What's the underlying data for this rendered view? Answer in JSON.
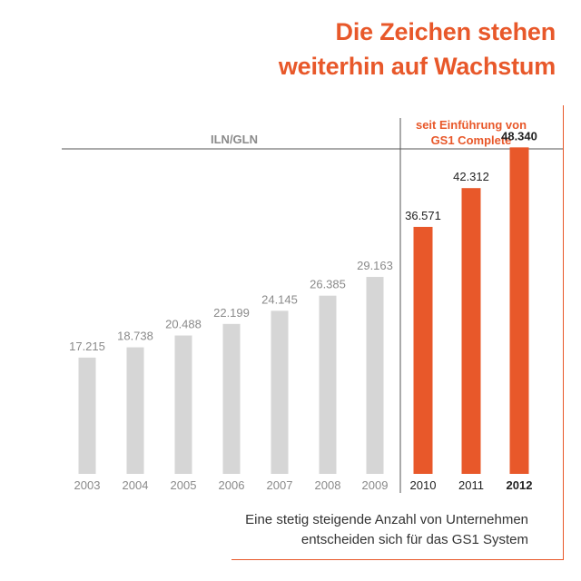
{
  "header": {
    "title_line1": "Die Zeichen stehen",
    "title_line2": "weiterhin auf Wachstum"
  },
  "footnote": {
    "line1": "Eine stetig steigende Anzahl von Unternehmen",
    "line2": "entscheiden sich für das GS1 System"
  },
  "colors": {
    "accent": "#e8582a",
    "bar_gray": "#d6d6d6",
    "label_gray": "#8a8a8a",
    "text_dark": "#222222"
  },
  "chart_data": {
    "type": "bar",
    "title": "",
    "xlabel": "",
    "ylabel": "",
    "ylim": [
      0,
      50000
    ],
    "grid": false,
    "segments": [
      {
        "label": "ILN/GLN",
        "label_lines": [
          "ILN/GLN"
        ],
        "years": [
          "2003",
          "2004",
          "2005",
          "2006",
          "2007",
          "2008",
          "2009"
        ]
      },
      {
        "label": "seit Einführung von GS1 Complete",
        "label_lines": [
          "seit Einführung von",
          "GS1 Complete"
        ],
        "years": [
          "2010",
          "2011",
          "2012"
        ]
      }
    ],
    "categories": [
      "2003",
      "2004",
      "2005",
      "2006",
      "2007",
      "2008",
      "2009",
      "2010",
      "2011",
      "2012"
    ],
    "values": [
      17215,
      18738,
      20488,
      22199,
      24145,
      26385,
      29163,
      36571,
      42312,
      48340
    ],
    "value_labels": [
      "17.215",
      "18.738",
      "20.488",
      "22.199",
      "24.145",
      "26.385",
      "29.163",
      "36.571",
      "42.312",
      "48.340"
    ],
    "highlighted": [
      "2012"
    ]
  }
}
